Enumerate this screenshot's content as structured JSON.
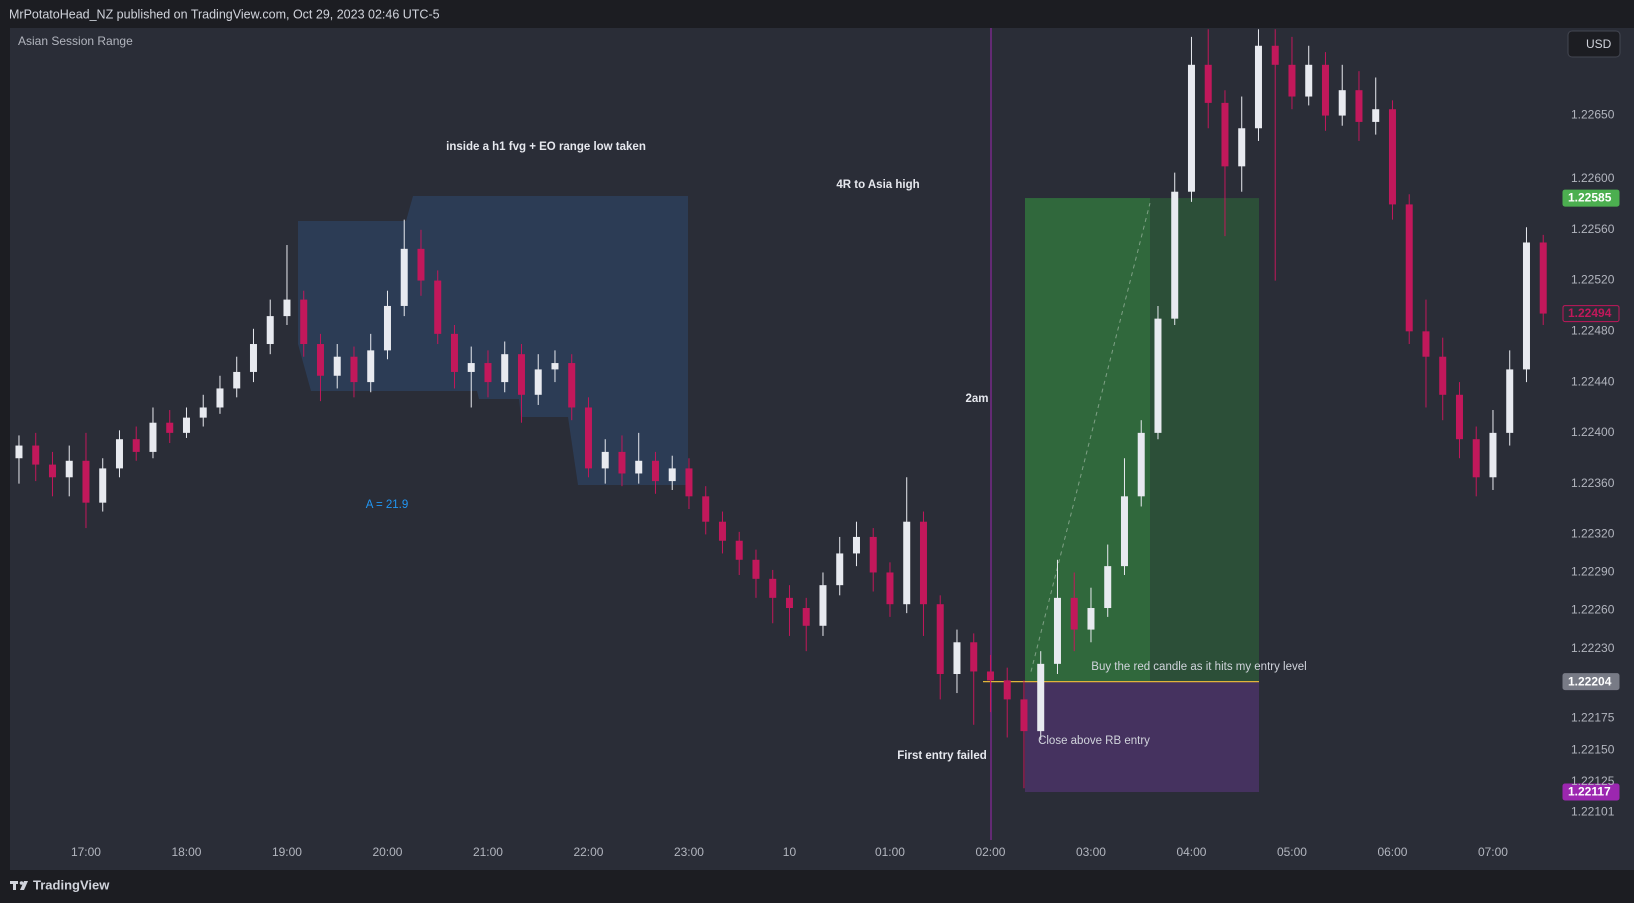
{
  "header": "MrPotatoHead_NZ published on TradingView.com, Oct 29, 2023 02:46 UTC-5",
  "brand": "TradingView",
  "chart_data": {
    "type": "candlestick",
    "title": "Asian Session Range",
    "currency": "USD",
    "categories": [
      null,
      null,
      null,
      null,
      "17:00",
      null,
      null,
      null,
      null,
      null,
      "18:00",
      null,
      null,
      null,
      null,
      null,
      "19:00",
      null,
      null,
      null,
      null,
      null,
      "20:00",
      null,
      null,
      null,
      null,
      null,
      "21:00",
      null,
      null,
      null,
      null,
      null,
      "22:00",
      null,
      null,
      null,
      null,
      null,
      "23:00",
      null,
      null,
      null,
      null,
      null,
      "10",
      null,
      null,
      null,
      null,
      null,
      "01:00",
      null,
      null,
      null,
      null,
      null,
      "02:00",
      null,
      null,
      null,
      null,
      null,
      "03:00",
      null,
      null,
      null,
      null,
      null,
      "04:00",
      null,
      null,
      null,
      null,
      null,
      "05:00",
      null,
      null,
      null,
      null,
      null,
      "06:00",
      null,
      null,
      null,
      null,
      null,
      "07:00",
      null,
      null,
      null
    ],
    "open": [
      1.2238,
      1.2239,
      1.22375,
      1.22365,
      1.22378,
      1.22345,
      1.22372,
      1.22395,
      1.22385,
      1.22408,
      1.224,
      1.22412,
      1.2242,
      1.22435,
      1.22448,
      1.2247,
      1.22492,
      1.22505,
      1.2247,
      1.22445,
      1.2246,
      1.2244,
      1.22465,
      1.225,
      1.22545,
      1.2252,
      1.22478,
      1.22448,
      1.22455,
      1.2244,
      1.22462,
      1.2243,
      1.2245,
      1.22455,
      1.2242,
      1.22372,
      1.22385,
      1.22368,
      1.22378,
      1.22362,
      1.22372,
      1.2235,
      1.2233,
      1.22315,
      1.223,
      1.22285,
      1.2227,
      1.22262,
      1.22248,
      1.2228,
      1.22305,
      1.22318,
      1.2229,
      1.22265,
      1.2233,
      1.22265,
      1.2221,
      1.22235,
      1.22212,
      1.22205,
      1.2219,
      1.22165,
      1.22218,
      1.2227,
      1.22245,
      1.22262,
      1.22295,
      1.2235,
      1.224,
      1.2249,
      1.2259,
      1.2269,
      1.2266,
      1.2261,
      1.2264,
      1.22705,
      1.2269,
      1.22665,
      1.2269,
      1.2265,
      1.2267,
      1.22645,
      1.22655,
      1.2258,
      1.2248,
      1.2246,
      1.2243,
      1.22395,
      1.22365,
      1.224,
      1.2245,
      1.2255
    ],
    "high": [
      1.22398,
      1.224,
      1.22385,
      1.2239,
      1.224,
      1.2238,
      1.22402,
      1.22405,
      1.2242,
      1.22418,
      1.2242,
      1.2243,
      1.22445,
      1.2246,
      1.22482,
      1.22505,
      1.22548,
      1.22512,
      1.22478,
      1.2247,
      1.22468,
      1.22478,
      1.22512,
      1.22568,
      1.2256,
      1.22528,
      1.22485,
      1.22468,
      1.22465,
      1.22472,
      1.2247,
      1.22462,
      1.22465,
      1.22462,
      1.22428,
      1.22395,
      1.22398,
      1.224,
      1.22385,
      1.22382,
      1.2238,
      1.22358,
      1.22338,
      1.22322,
      1.22308,
      1.22292,
      1.2228,
      1.2227,
      1.2229,
      1.22318,
      1.2233,
      1.22325,
      1.22298,
      1.22365,
      1.22338,
      1.22272,
      1.22245,
      1.22242,
      1.22225,
      1.22215,
      1.22205,
      1.22228,
      1.223,
      1.2229,
      1.22278,
      1.22312,
      1.2238,
      1.2241,
      1.225,
      1.22605,
      1.22712,
      1.22718,
      1.2267,
      1.22665,
      1.22718,
      1.22718,
      1.22712,
      1.22705,
      1.227,
      1.2269,
      1.22685,
      1.2268,
      1.22662,
      1.22588,
      1.22505,
      1.22475,
      1.2244,
      1.22405,
      1.22418,
      1.22465,
      1.22562,
      1.22556
    ],
    "low": [
      1.2236,
      1.22362,
      1.2235,
      1.2235,
      1.22325,
      1.22338,
      1.22365,
      1.22378,
      1.2238,
      1.22392,
      1.22396,
      1.22405,
      1.22415,
      1.22428,
      1.2244,
      1.22462,
      1.22485,
      1.2246,
      1.22425,
      1.22435,
      1.22428,
      1.22432,
      1.22458,
      1.22492,
      1.22508,
      1.2247,
      1.22435,
      1.2242,
      1.22428,
      1.22432,
      1.22408,
      1.22422,
      1.2244,
      1.2241,
      1.22365,
      1.2236,
      1.22358,
      1.2236,
      1.22352,
      1.22355,
      1.2234,
      1.2232,
      1.22305,
      1.22288,
      1.2227,
      1.2225,
      1.2224,
      1.22228,
      1.2224,
      1.22272,
      1.22295,
      1.22275,
      1.22255,
      1.22258,
      1.2224,
      1.2219,
      1.22195,
      1.2217,
      1.2218,
      1.2216,
      1.2212,
      1.22158,
      1.2221,
      1.22228,
      1.22235,
      1.22255,
      1.22288,
      1.22342,
      1.22395,
      1.22485,
      1.22582,
      1.2264,
      1.22555,
      1.2259,
      1.2263,
      1.2252,
      1.22655,
      1.22658,
      1.22638,
      1.22642,
      1.2263,
      1.22635,
      1.22568,
      1.2247,
      1.2242,
      1.2241,
      1.2238,
      1.2235,
      1.22355,
      1.2239,
      1.2244,
      1.22485
    ],
    "close": [
      1.2239,
      1.22375,
      1.22365,
      1.22378,
      1.22345,
      1.22372,
      1.22395,
      1.22385,
      1.22408,
      1.224,
      1.22412,
      1.2242,
      1.22435,
      1.22448,
      1.2247,
      1.22492,
      1.22505,
      1.2247,
      1.22445,
      1.2246,
      1.2244,
      1.22465,
      1.225,
      1.22545,
      1.2252,
      1.22478,
      1.22448,
      1.22455,
      1.2244,
      1.22462,
      1.2243,
      1.2245,
      1.22455,
      1.2242,
      1.22372,
      1.22385,
      1.22368,
      1.22378,
      1.22362,
      1.22372,
      1.2235,
      1.2233,
      1.22315,
      1.223,
      1.22285,
      1.2227,
      1.22262,
      1.22248,
      1.2228,
      1.22305,
      1.22318,
      1.2229,
      1.22265,
      1.2233,
      1.22265,
      1.2221,
      1.22235,
      1.22212,
      1.22205,
      1.2219,
      1.22165,
      1.22218,
      1.2227,
      1.22245,
      1.22262,
      1.22295,
      1.2235,
      1.224,
      1.2249,
      1.2259,
      1.2269,
      1.2266,
      1.2261,
      1.2264,
      1.22705,
      1.2269,
      1.22665,
      1.2269,
      1.2265,
      1.2267,
      1.22645,
      1.22655,
      1.2258,
      1.2248,
      1.2246,
      1.2243,
      1.22395,
      1.22365,
      1.224,
      1.2245,
      1.2255,
      1.22494
    ],
    "up_color": "#e8eaf0",
    "down_color": "#c2185b",
    "ylim": [
      1.2208,
      1.22719
    ],
    "yticks": [
      {
        "value": 1.2265,
        "label": "1.22650"
      },
      {
        "value": 1.226,
        "label": "1.22600"
      },
      {
        "value": 1.2256,
        "label": "1.22560"
      },
      {
        "value": 1.2252,
        "label": "1.22520"
      },
      {
        "value": 1.2248,
        "label": "1.22480"
      },
      {
        "value": 1.2244,
        "label": "1.22440"
      },
      {
        "value": 1.224,
        "label": "1.22400"
      },
      {
        "value": 1.2236,
        "label": "1.22360"
      },
      {
        "value": 1.2232,
        "label": "1.22320"
      },
      {
        "value": 1.2229,
        "label": "1.22290"
      },
      {
        "value": 1.2226,
        "label": "1.22260"
      },
      {
        "value": 1.2223,
        "label": "1.22230"
      },
      1.22175,
      {
        "value": 1.2215,
        "label": "1.22150"
      },
      1.22125,
      1.22101
    ],
    "grid": false,
    "position": {
      "target": 1.22585,
      "entry": 1.22204,
      "stop": 1.22117
    },
    "price_labels": [
      {
        "value": 1.22585,
        "color": "#4caf50",
        "text_color": "#ffffff",
        "outline": false
      },
      {
        "value": 1.22494,
        "color": "#c2185b",
        "text_color": "#c2185b",
        "outline": true
      },
      {
        "value": 1.22204,
        "color": "#787b86",
        "text_color": "#ffffff",
        "outline": false
      },
      {
        "value": 1.22117,
        "color": "#9c27b0",
        "text_color": "#ffffff",
        "outline": false
      }
    ],
    "annotations": [
      "inside a h1 fvg + EO range low taken",
      "4R to Asia high",
      "2am",
      "A = 21.9",
      "Buy the red candle as it hits my entry level",
      "Close above RB entry",
      "First entry failed"
    ]
  }
}
